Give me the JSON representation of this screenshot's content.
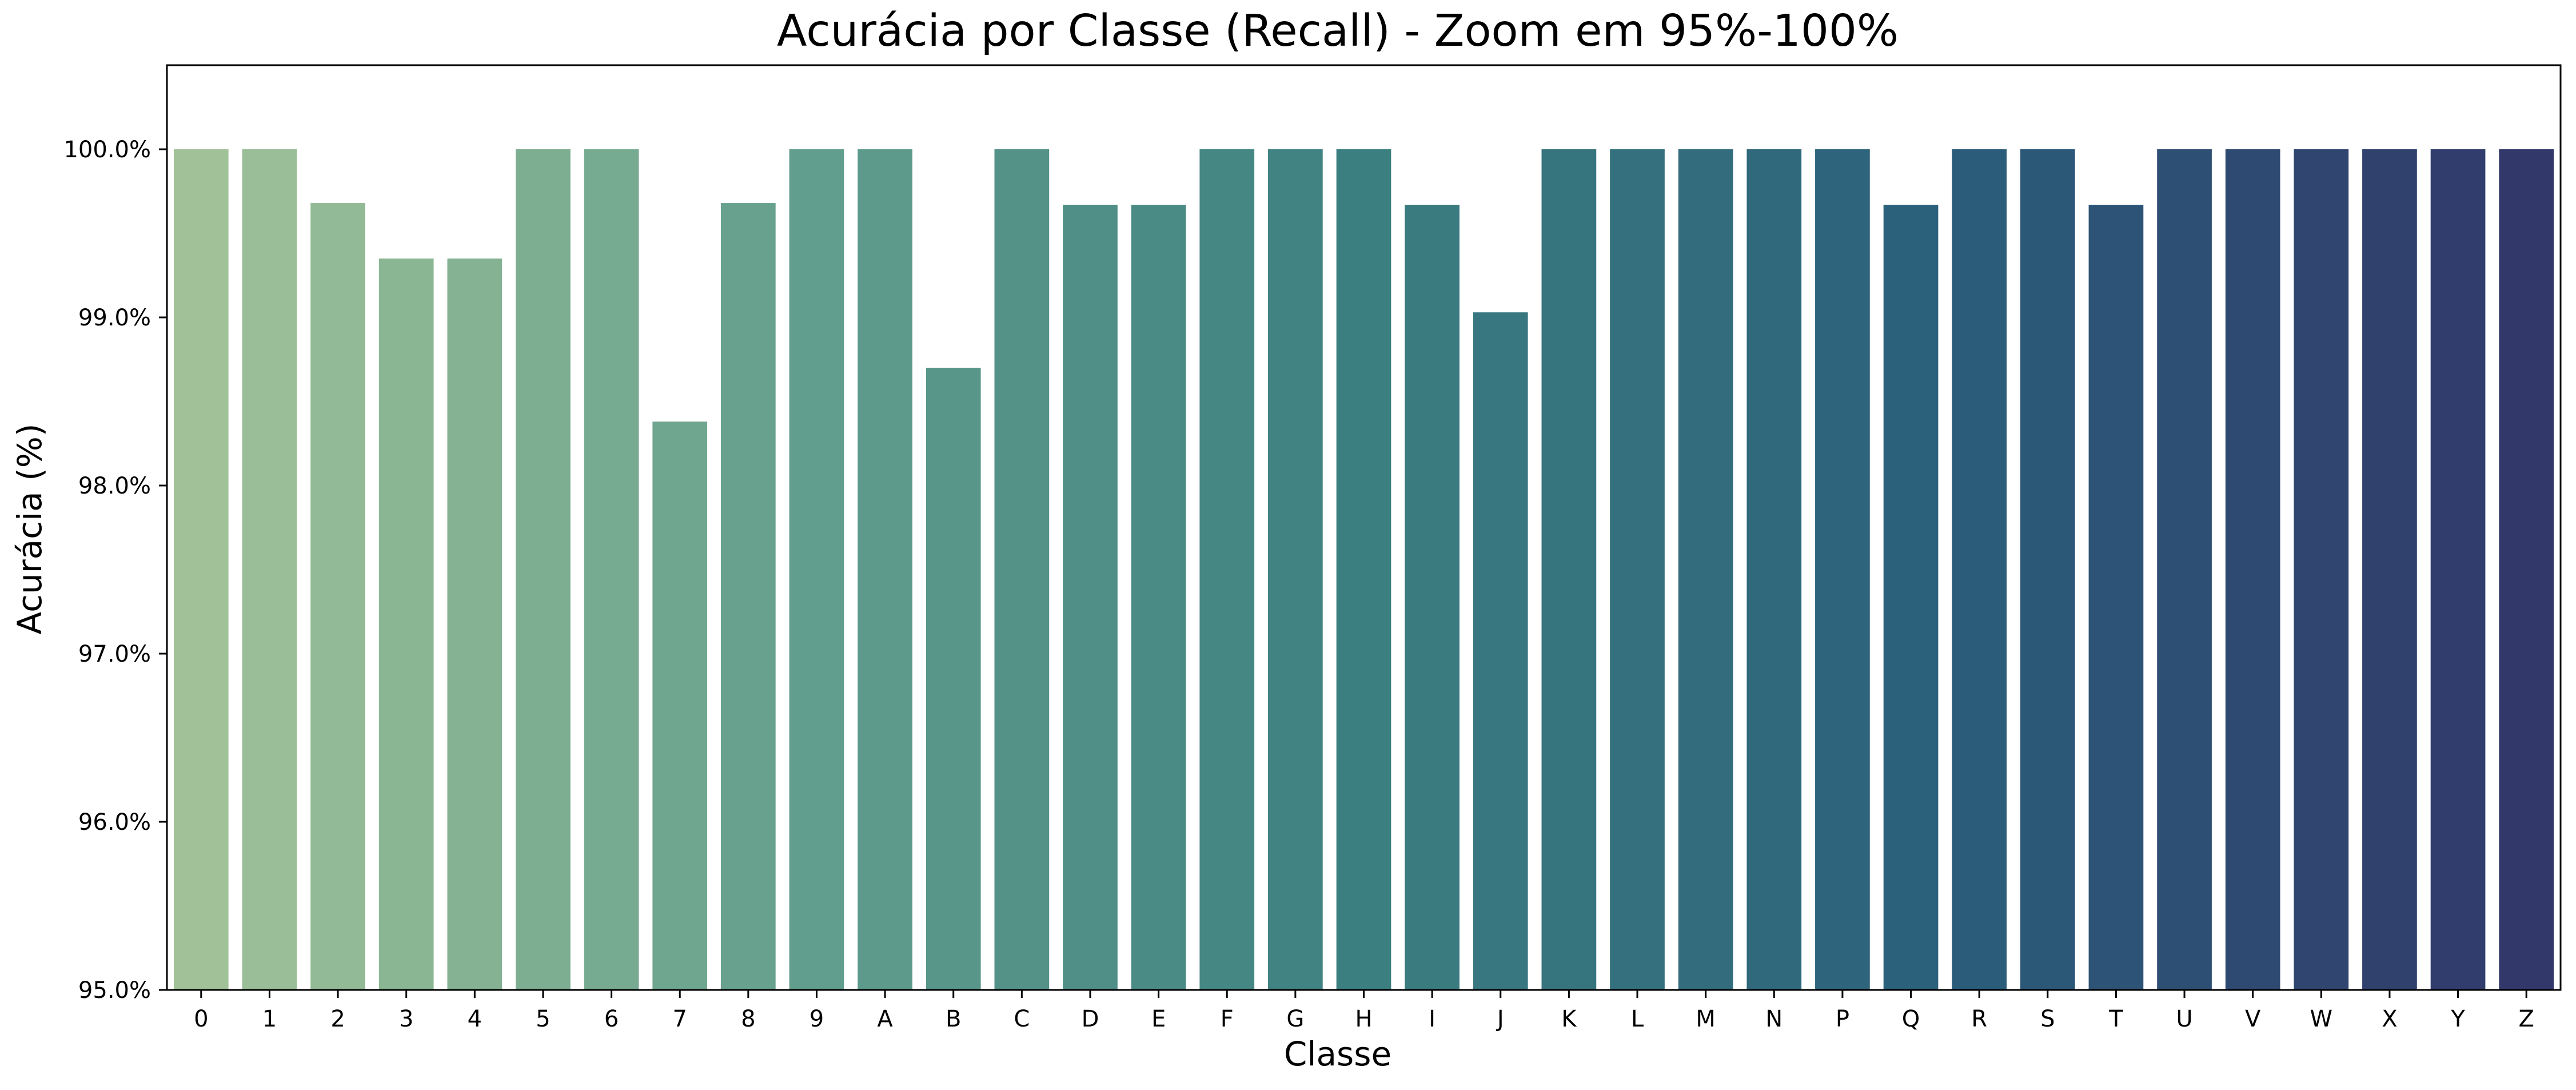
{
  "chart_data": {
    "type": "bar",
    "title": "Acurácia por Classe (Recall) - Zoom em 95%-100%",
    "xlabel": "Classe",
    "ylabel": "Acurácia (%)",
    "ylim": [
      95.0,
      100.5
    ],
    "y_ticks": [
      95.0,
      96.0,
      97.0,
      98.0,
      99.0,
      100.0
    ],
    "y_tick_labels": [
      "95.0%",
      "96.0%",
      "97.0%",
      "98.0%",
      "99.0%",
      "100.0%"
    ],
    "grid": false,
    "categories": [
      "0",
      "1",
      "2",
      "3",
      "4",
      "5",
      "6",
      "7",
      "8",
      "9",
      "A",
      "B",
      "C",
      "D",
      "E",
      "F",
      "G",
      "H",
      "I",
      "J",
      "K",
      "L",
      "M",
      "N",
      "P",
      "Q",
      "R",
      "S",
      "T",
      "U",
      "V",
      "W",
      "X",
      "Y",
      "Z"
    ],
    "values": [
      100.0,
      100.0,
      99.68,
      99.35,
      99.35,
      100.0,
      100.0,
      98.38,
      99.68,
      100.0,
      100.0,
      98.7,
      100.0,
      99.67,
      99.67,
      100.0,
      100.0,
      100.0,
      99.67,
      99.03,
      100.0,
      100.0,
      100.0,
      100.0,
      100.0,
      99.67,
      100.0,
      100.0,
      99.67,
      100.0,
      100.0,
      100.0,
      100.0,
      100.0,
      100.0
    ],
    "palette": "crest",
    "palette_colors": [
      "#a1c298",
      "#64a08e",
      "#3c7f80",
      "#2b5f7b",
      "#32386a"
    ]
  }
}
